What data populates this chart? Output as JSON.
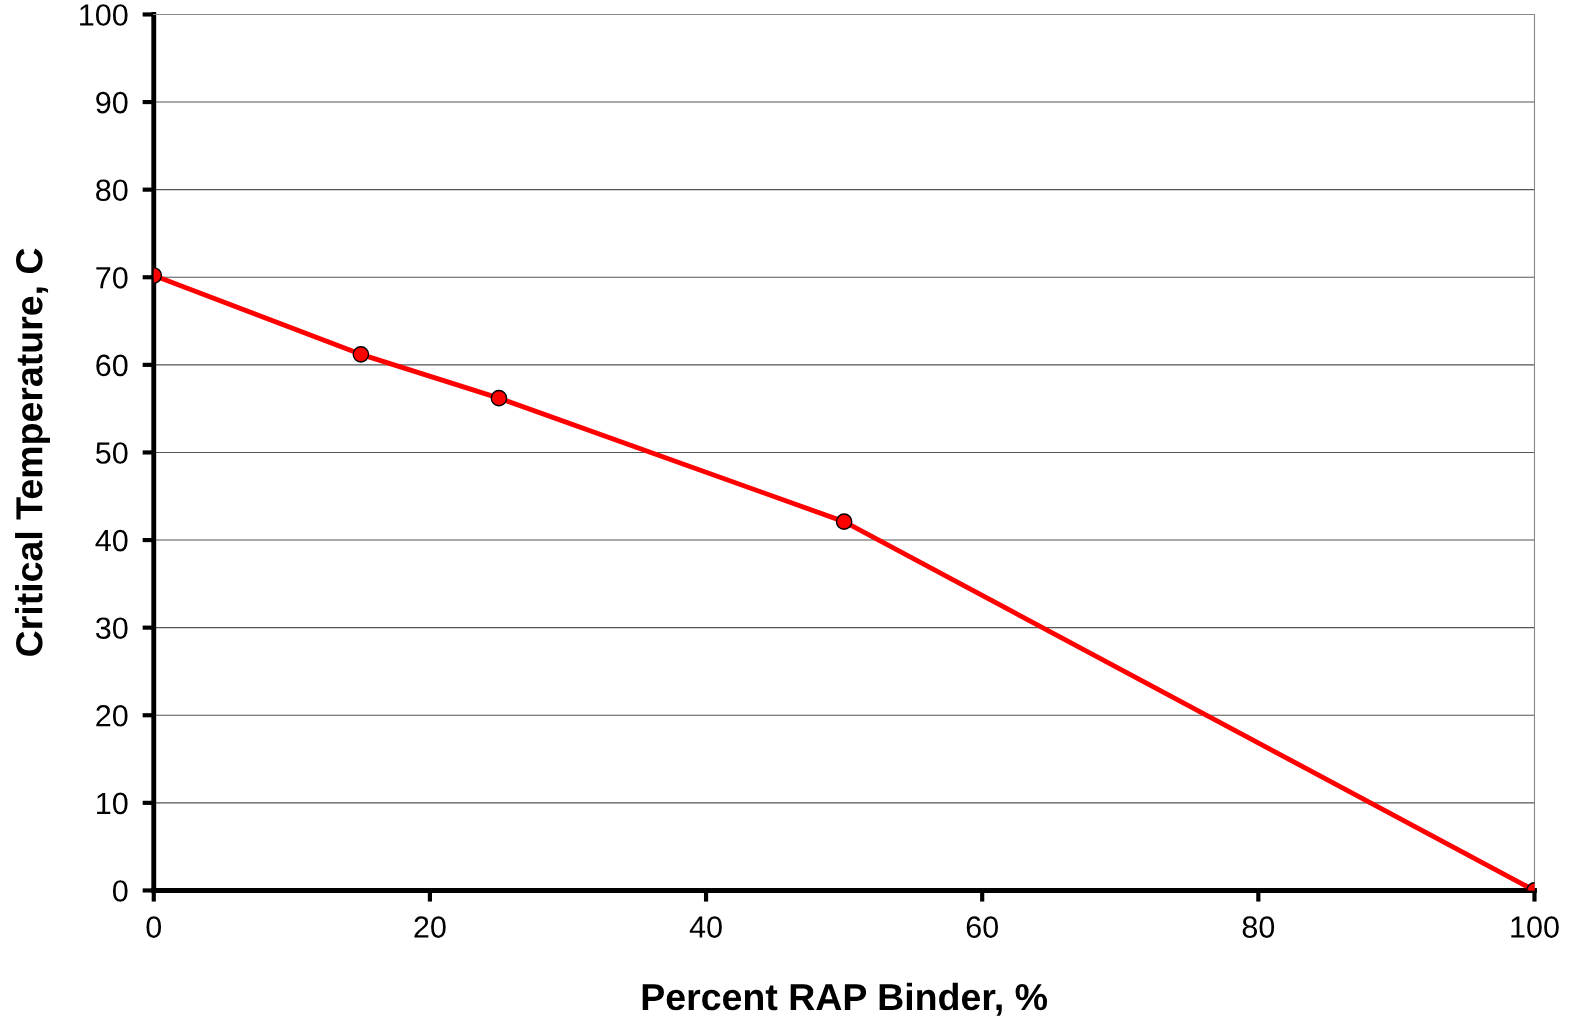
{
  "chart_data": {
    "type": "line",
    "xlabel": "Percent RAP Binder, %",
    "ylabel": "Critical Temperature, C",
    "x": [
      0,
      15,
      25,
      50,
      100
    ],
    "series": [
      {
        "color": "#ff0000",
        "values": [
          70.2,
          61.2,
          56.2,
          42.1,
          0
        ]
      }
    ],
    "xlim": [
      0,
      100
    ],
    "xticks": [
      0,
      20,
      40,
      60,
      80,
      100
    ],
    "ylim": [
      0,
      100
    ],
    "yticks": [
      0,
      10,
      20,
      30,
      40,
      50,
      60,
      70,
      80,
      90,
      100
    ],
    "grid": "y",
    "marker": "circle",
    "line_style": "solid"
  }
}
